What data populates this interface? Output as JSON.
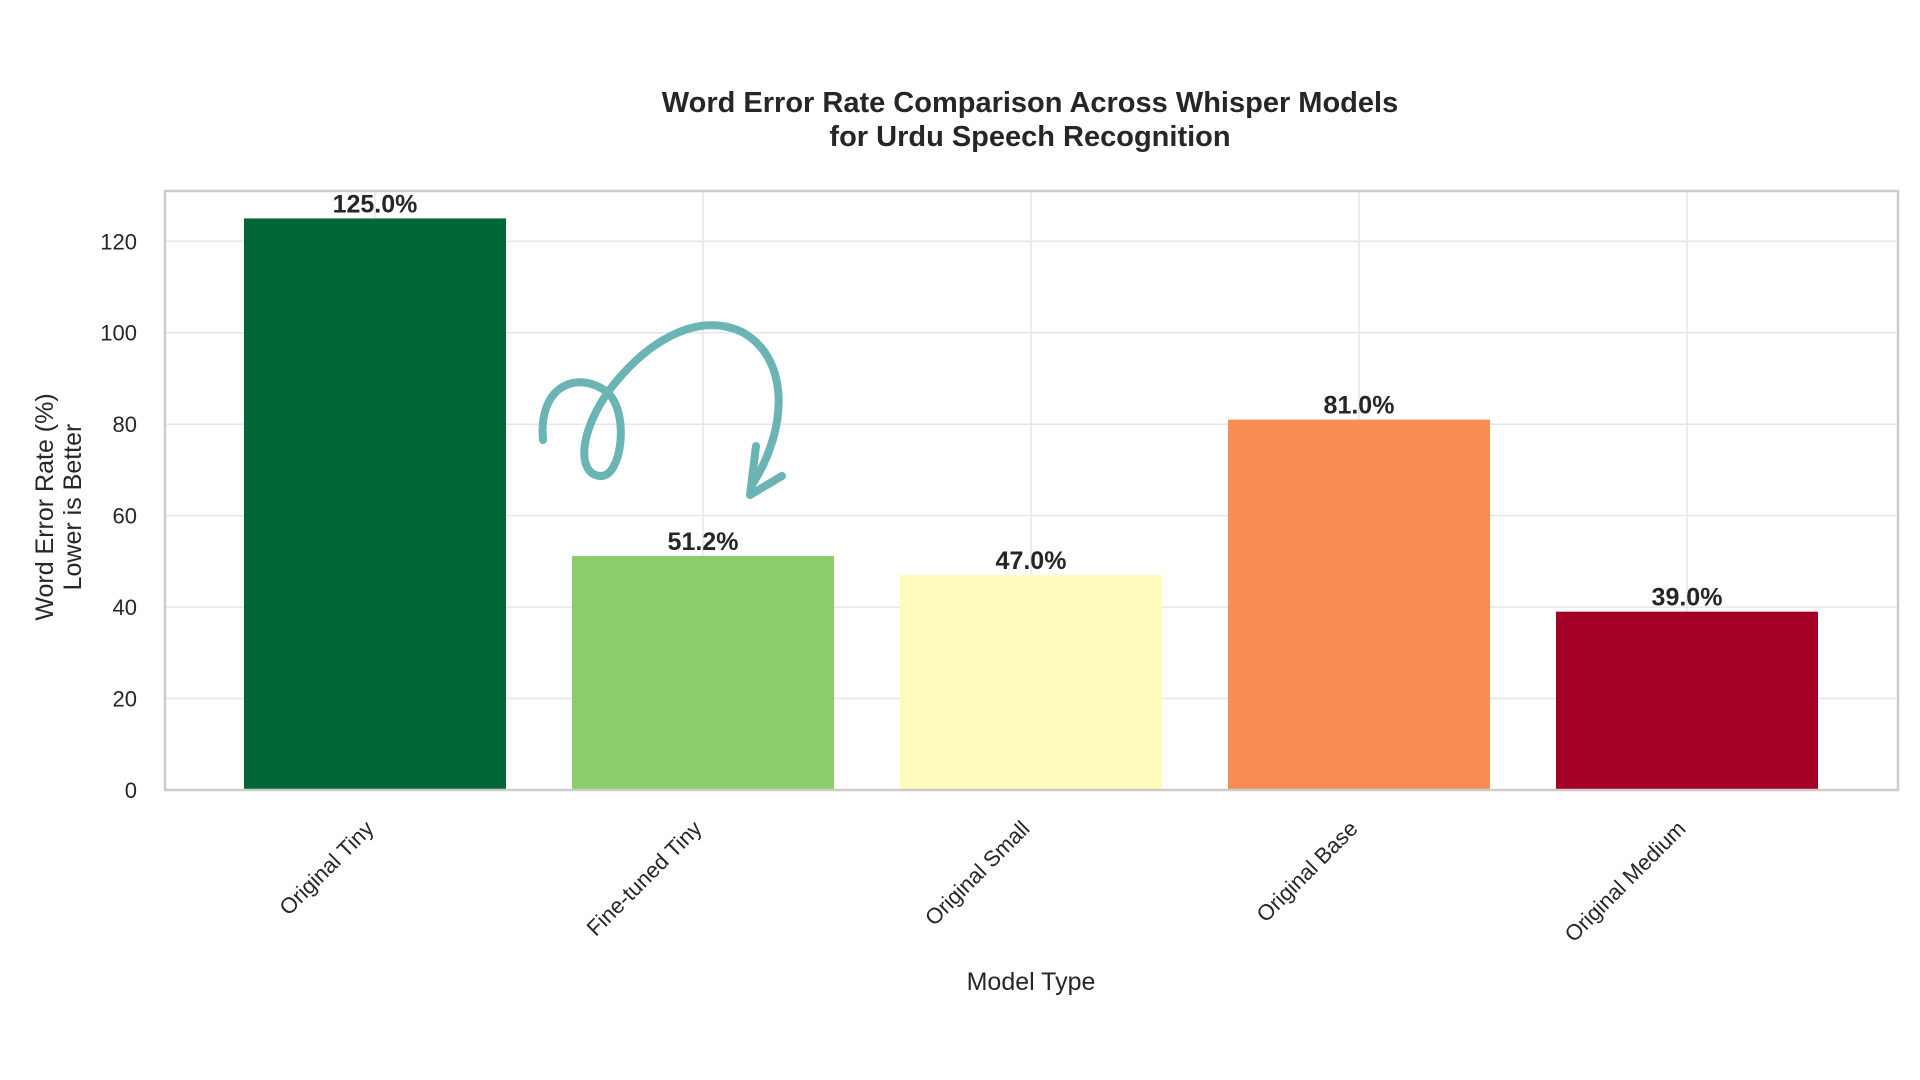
{
  "chart_data": {
    "type": "bar",
    "title": [
      "Word Error Rate Comparison Across Whisper Models",
      "for Urdu Speech Recognition"
    ],
    "xlabel": "Model Type",
    "ylabel": [
      "Word Error Rate (%)",
      "Lower is Better"
    ],
    "categories": [
      "Original Tiny",
      "Fine-tuned Tiny",
      "Original Small",
      "Original Base",
      "Original Medium"
    ],
    "values": [
      125.0,
      51.2,
      47.0,
      81.0,
      39.0
    ],
    "value_labels": [
      "125.0%",
      "51.2%",
      "47.0%",
      "81.0%",
      "39.0%"
    ],
    "colors": [
      "#006837",
      "#8ccc6a",
      "#fefbbd",
      "#f88e53",
      "#a50026"
    ],
    "ylim": [
      0,
      131
    ],
    "yticks": [
      0,
      20,
      40,
      60,
      80,
      100,
      120
    ],
    "grid": true,
    "annotation": {
      "type": "curved-arrow",
      "color": "#6ab4b4",
      "points_to": "Fine-tuned Tiny"
    }
  }
}
